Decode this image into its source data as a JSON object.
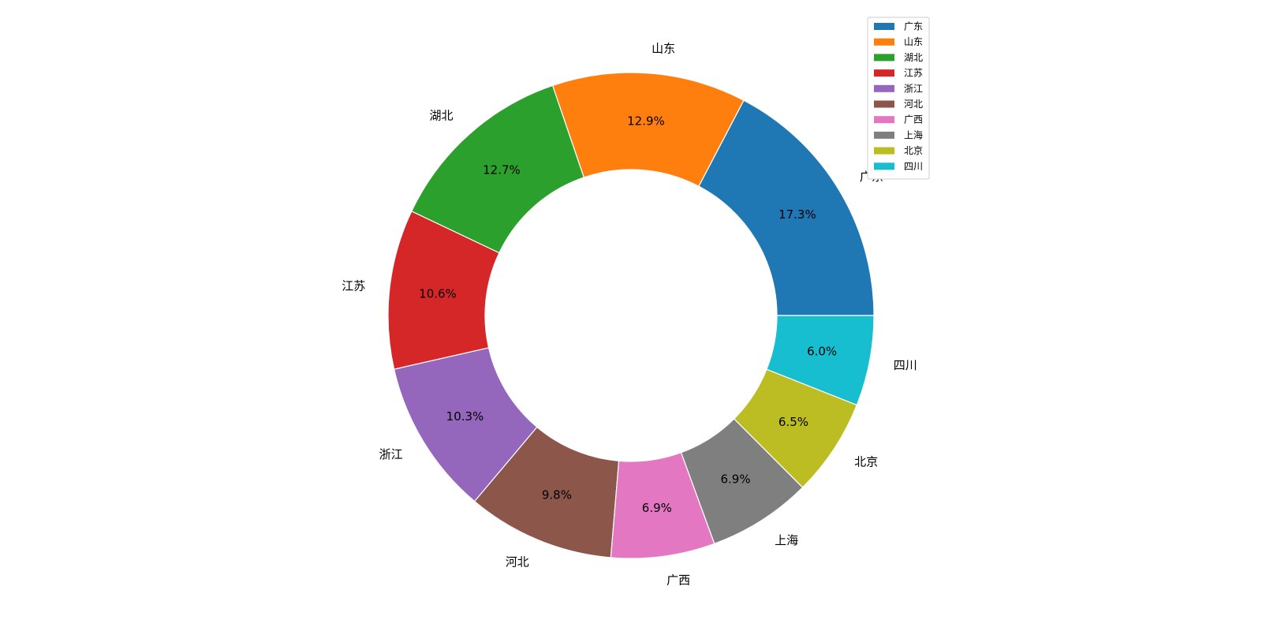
{
  "chart_data": {
    "type": "pie",
    "categories": [
      "广东",
      "山东",
      "湖北",
      "江苏",
      "浙江",
      "河北",
      "广西",
      "上海",
      "北京",
      "四川"
    ],
    "values": [
      17.3,
      12.9,
      12.7,
      10.6,
      10.3,
      9.8,
      6.9,
      6.9,
      6.5,
      6.0
    ],
    "value_labels": [
      "17.3%",
      "12.9%",
      "12.7%",
      "10.6%",
      "10.3%",
      "9.8%",
      "6.9%",
      "6.9%",
      "6.5%",
      "6.0%"
    ],
    "colors": [
      "#1f77b4",
      "#ff7f0e",
      "#2ca02c",
      "#d62728",
      "#9467bd",
      "#8c564b",
      "#e377c2",
      "#7f7f7f",
      "#bcbd22",
      "#17becf"
    ],
    "donut": true,
    "legend": "upper right"
  }
}
